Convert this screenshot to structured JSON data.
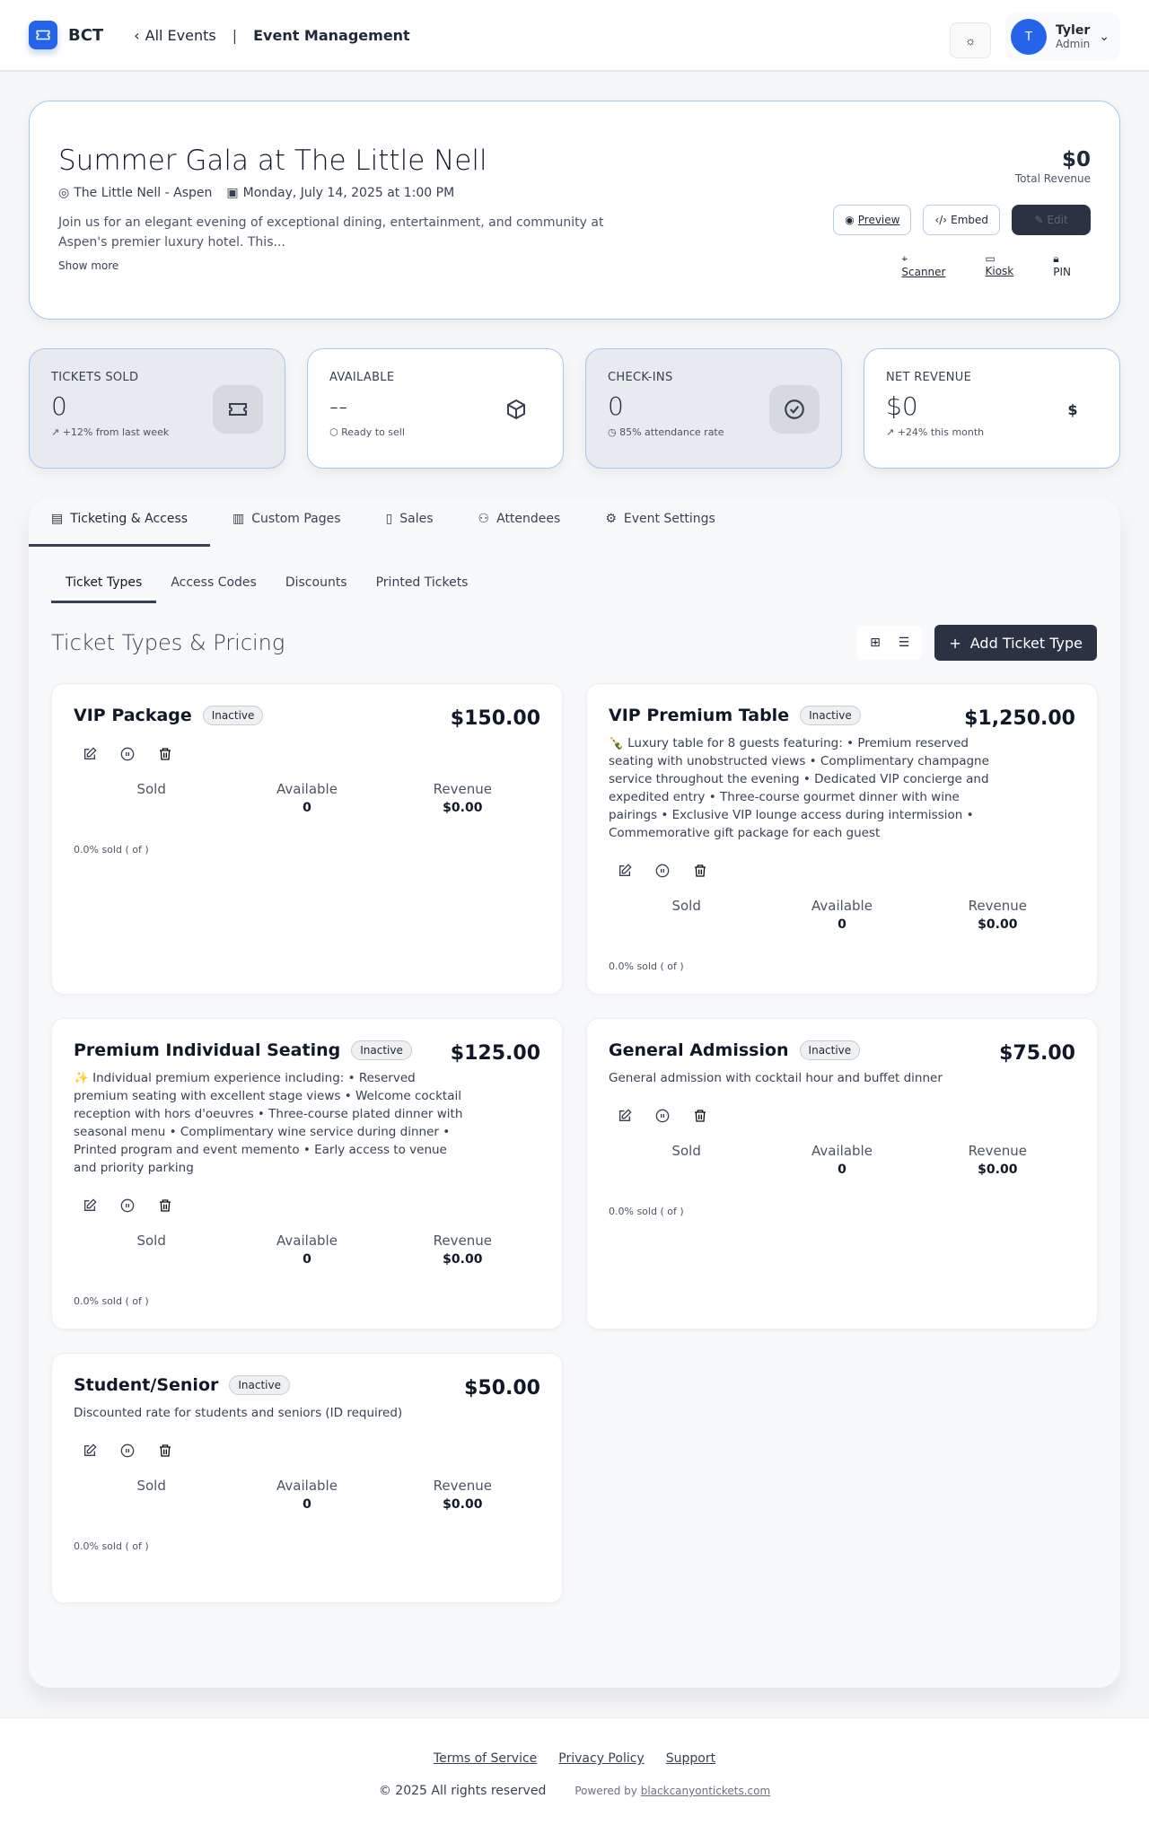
{
  "header": {
    "brand": "BCT",
    "back_label": "All Events",
    "separator": "|",
    "page": "Event Management",
    "user": {
      "initial": "T",
      "name": "Tyler",
      "role": "Admin"
    }
  },
  "event": {
    "title": "Summer Gala at The Little Nell",
    "venue": "The Little Nell - Aspen",
    "date": "Monday, July 14, 2025 at 1:00 PM",
    "description": "Join us for an elegant evening of exceptional dining, entertainment, and community at Aspen's premier luxury hotel. This...",
    "show_more": "Show more",
    "revenue": "$0",
    "revenue_label": "Total Revenue",
    "buttons": {
      "preview": "Preview",
      "embed": "Embed",
      "edit": "Edit"
    },
    "links": {
      "scanner": "Scanner",
      "kiosk": "Kiosk",
      "pin": "PIN"
    }
  },
  "stats": [
    {
      "label": "TICKETS SOLD",
      "value": "0",
      "sub": "↗ +12% from last week",
      "icon": "ticket-icon"
    },
    {
      "label": "AVAILABLE",
      "value": "--",
      "sub": "Ready to sell",
      "icon": "box-icon"
    },
    {
      "label": "CHECK-INS",
      "value": "0",
      "sub": "85% attendance rate",
      "icon": "check-circle-icon"
    },
    {
      "label": "NET REVENUE",
      "value": "$0",
      "sub": "↗ +24% this month",
      "icon": "dollar-icon",
      "icon_text": "$"
    }
  ],
  "tabs": [
    "Ticketing & Access",
    "Custom Pages",
    "Sales",
    "Attendees",
    "Event Settings"
  ],
  "subtabs": [
    "Ticket Types",
    "Access Codes",
    "Discounts",
    "Printed Tickets"
  ],
  "section": {
    "title": "Ticket Types & Pricing",
    "add_label": "Add Ticket Type"
  },
  "stat_labels": {
    "sold": "Sold",
    "available": "Available",
    "revenue": "Revenue"
  },
  "tickets": [
    {
      "name": "VIP Package",
      "status": "Inactive",
      "price": "$150.00",
      "description": "",
      "available": "0",
      "revenue": "$0.00",
      "progress": "0.0% sold ( of )"
    },
    {
      "name": "VIP Premium Table",
      "status": "Inactive",
      "price": "$1,250.00",
      "description": "🍾 Luxury table for 8 guests featuring: • Premium reserved seating with unobstructed views • Complimentary champagne service throughout the evening • Dedicated VIP concierge and expedited entry • Three-course gourmet dinner with wine pairings • Exclusive VIP lounge access during intermission • Commemorative gift package for each guest",
      "available": "0",
      "revenue": "$0.00",
      "progress": "0.0% sold ( of )"
    },
    {
      "name": "Premium Individual Seating",
      "status": "Inactive",
      "price": "$125.00",
      "description": "✨ Individual premium experience including: • Reserved premium seating with excellent stage views • Welcome cocktail reception with hors d'oeuvres • Three-course plated dinner with seasonal menu • Complimentary wine service during dinner • Printed program and event memento • Early access to venue and priority parking",
      "available": "0",
      "revenue": "$0.00",
      "progress": "0.0% sold ( of )"
    },
    {
      "name": "General Admission",
      "status": "Inactive",
      "price": "$75.00",
      "description": "General admission with cocktail hour and buffet dinner",
      "available": "0",
      "revenue": "$0.00",
      "progress": "0.0% sold ( of )"
    },
    {
      "name": "Student/Senior",
      "status": "Inactive",
      "price": "$50.00",
      "description": "Discounted rate for students and seniors (ID required)",
      "available": "0",
      "revenue": "$0.00",
      "progress": "0.0% sold ( of )"
    }
  ],
  "footer": {
    "links": [
      "Terms of Service",
      "Privacy Policy",
      "Support"
    ],
    "copyright": "© 2025 All rights reserved",
    "powered_by": "Powered by",
    "powered_link": "blackcanyontickets.com"
  },
  "colors": {
    "accent": "#2563eb",
    "dark_button": "#2b3342",
    "card_border": "#a9c6f0"
  }
}
